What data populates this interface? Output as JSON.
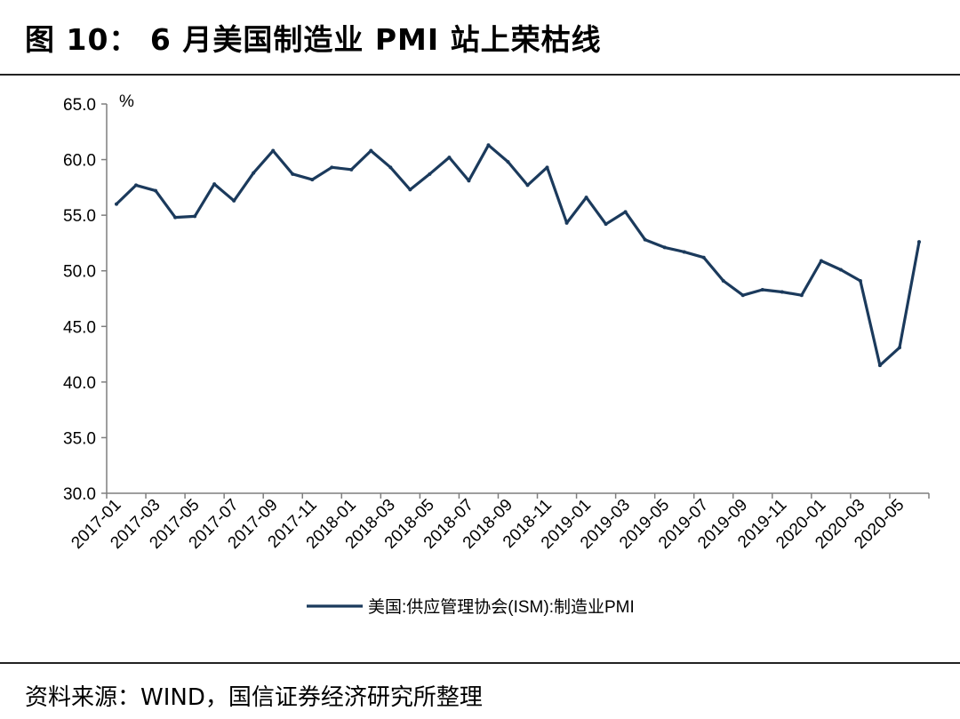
{
  "header": {
    "title": "图 10：  6 月美国制造业 PMI 站上荣枯线"
  },
  "footer": {
    "source": "资料来源：WIND，国信证券经济研究所整理"
  },
  "colors": {
    "series": "#1b3a5c",
    "axis": "#7f7f7f"
  },
  "chart_data": {
    "type": "line",
    "ylabel": "%",
    "ylim": [
      30.0,
      65.0
    ],
    "y_ticks": [
      "30.0",
      "35.0",
      "40.0",
      "45.0",
      "50.0",
      "55.0",
      "60.0",
      "65.0"
    ],
    "x_tick_labels": [
      "2017-01",
      "2017-03",
      "2017-05",
      "2017-07",
      "2017-09",
      "2017-11",
      "2018-01",
      "2018-03",
      "2018-05",
      "2018-07",
      "2018-09",
      "2018-11",
      "2019-01",
      "2019-03",
      "2019-05",
      "2019-07",
      "2019-09",
      "2019-11",
      "2020-01",
      "2020-03",
      "2020-05"
    ],
    "grid": false,
    "legend_position": "bottom",
    "series": [
      {
        "name": "美国:供应管理协会(ISM):制造业PMI",
        "x": [
          "2017-01",
          "2017-02",
          "2017-03",
          "2017-04",
          "2017-05",
          "2017-06",
          "2017-07",
          "2017-08",
          "2017-09",
          "2017-10",
          "2017-11",
          "2017-12",
          "2018-01",
          "2018-02",
          "2018-03",
          "2018-04",
          "2018-05",
          "2018-06",
          "2018-07",
          "2018-08",
          "2018-09",
          "2018-10",
          "2018-11",
          "2018-12",
          "2019-01",
          "2019-02",
          "2019-03",
          "2019-04",
          "2019-05",
          "2019-06",
          "2019-07",
          "2019-08",
          "2019-09",
          "2019-10",
          "2019-11",
          "2019-12",
          "2020-01",
          "2020-02",
          "2020-03",
          "2020-04",
          "2020-05",
          "2020-06"
        ],
        "values": [
          56.0,
          57.7,
          57.2,
          54.8,
          54.9,
          57.8,
          56.3,
          58.8,
          60.8,
          58.7,
          58.2,
          59.3,
          59.1,
          60.8,
          59.3,
          57.3,
          58.7,
          60.2,
          58.1,
          61.3,
          59.8,
          57.7,
          59.3,
          54.3,
          56.6,
          54.2,
          55.3,
          52.8,
          52.1,
          51.7,
          51.2,
          49.1,
          47.8,
          48.3,
          48.1,
          47.8,
          50.9,
          50.1,
          49.1,
          41.5,
          43.1,
          52.6
        ]
      }
    ]
  }
}
